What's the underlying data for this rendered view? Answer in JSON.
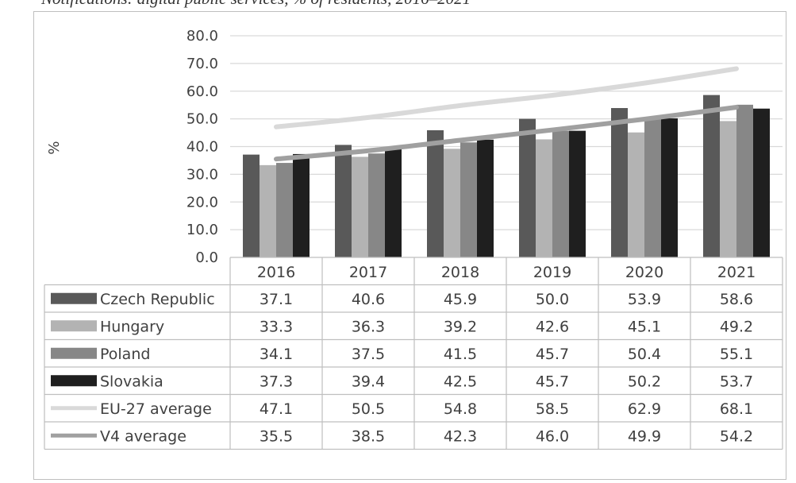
{
  "caption": "Notifications: digital public services, % of residents, 2016–2021",
  "chart_data": {
    "type": "bar",
    "ylabel": "%",
    "ylim": [
      0,
      80
    ],
    "yticks": [
      "0.0",
      "10.0",
      "20.0",
      "30.0",
      "40.0",
      "50.0",
      "60.0",
      "70.0",
      "80.0"
    ],
    "grid": true,
    "legend": "data-table",
    "categories": [
      "2016",
      "2017",
      "2018",
      "2019",
      "2020",
      "2021"
    ],
    "series": [
      {
        "name": "Czech Republic",
        "kind": "bar",
        "color": "#595959",
        "values": [
          37.1,
          40.6,
          45.9,
          50.0,
          53.9,
          58.6
        ],
        "labels": [
          "37.1",
          "40.6",
          "45.9",
          "50.0",
          "53.9",
          "58.6"
        ]
      },
      {
        "name": "Hungary",
        "kind": "bar",
        "color": "#b3b3b3",
        "values": [
          33.3,
          36.3,
          39.2,
          42.6,
          45.1,
          49.2
        ],
        "labels": [
          "33.3",
          "36.3",
          "39.2",
          "42.6",
          "45.1",
          "49.2"
        ]
      },
      {
        "name": "Poland",
        "kind": "bar",
        "color": "#878787",
        "values": [
          34.1,
          37.5,
          41.5,
          45.7,
          50.4,
          55.1
        ],
        "labels": [
          "34.1",
          "37.5",
          "41.5",
          "45.7",
          "50.4",
          "55.1"
        ]
      },
      {
        "name": "Slovakia",
        "kind": "bar",
        "color": "#1f1f1f",
        "values": [
          37.3,
          39.4,
          42.5,
          45.7,
          50.2,
          53.7
        ],
        "labels": [
          "37.3",
          "39.4",
          "42.5",
          "45.7",
          "50.2",
          "53.7"
        ]
      },
      {
        "name": "EU-27 average",
        "kind": "line",
        "color": "#d9d9d9",
        "values": [
          47.1,
          50.5,
          54.8,
          58.5,
          62.9,
          68.1
        ],
        "labels": [
          "47.1",
          "50.5",
          "54.8",
          "58.5",
          "62.9",
          "68.1"
        ]
      },
      {
        "name": "V4 average",
        "kind": "line",
        "color": "#a0a0a0",
        "values": [
          35.5,
          38.5,
          42.3,
          46.0,
          49.9,
          54.2
        ],
        "labels": [
          "35.5",
          "38.5",
          "42.3",
          "46.0",
          "49.9",
          "54.2"
        ]
      }
    ]
  }
}
